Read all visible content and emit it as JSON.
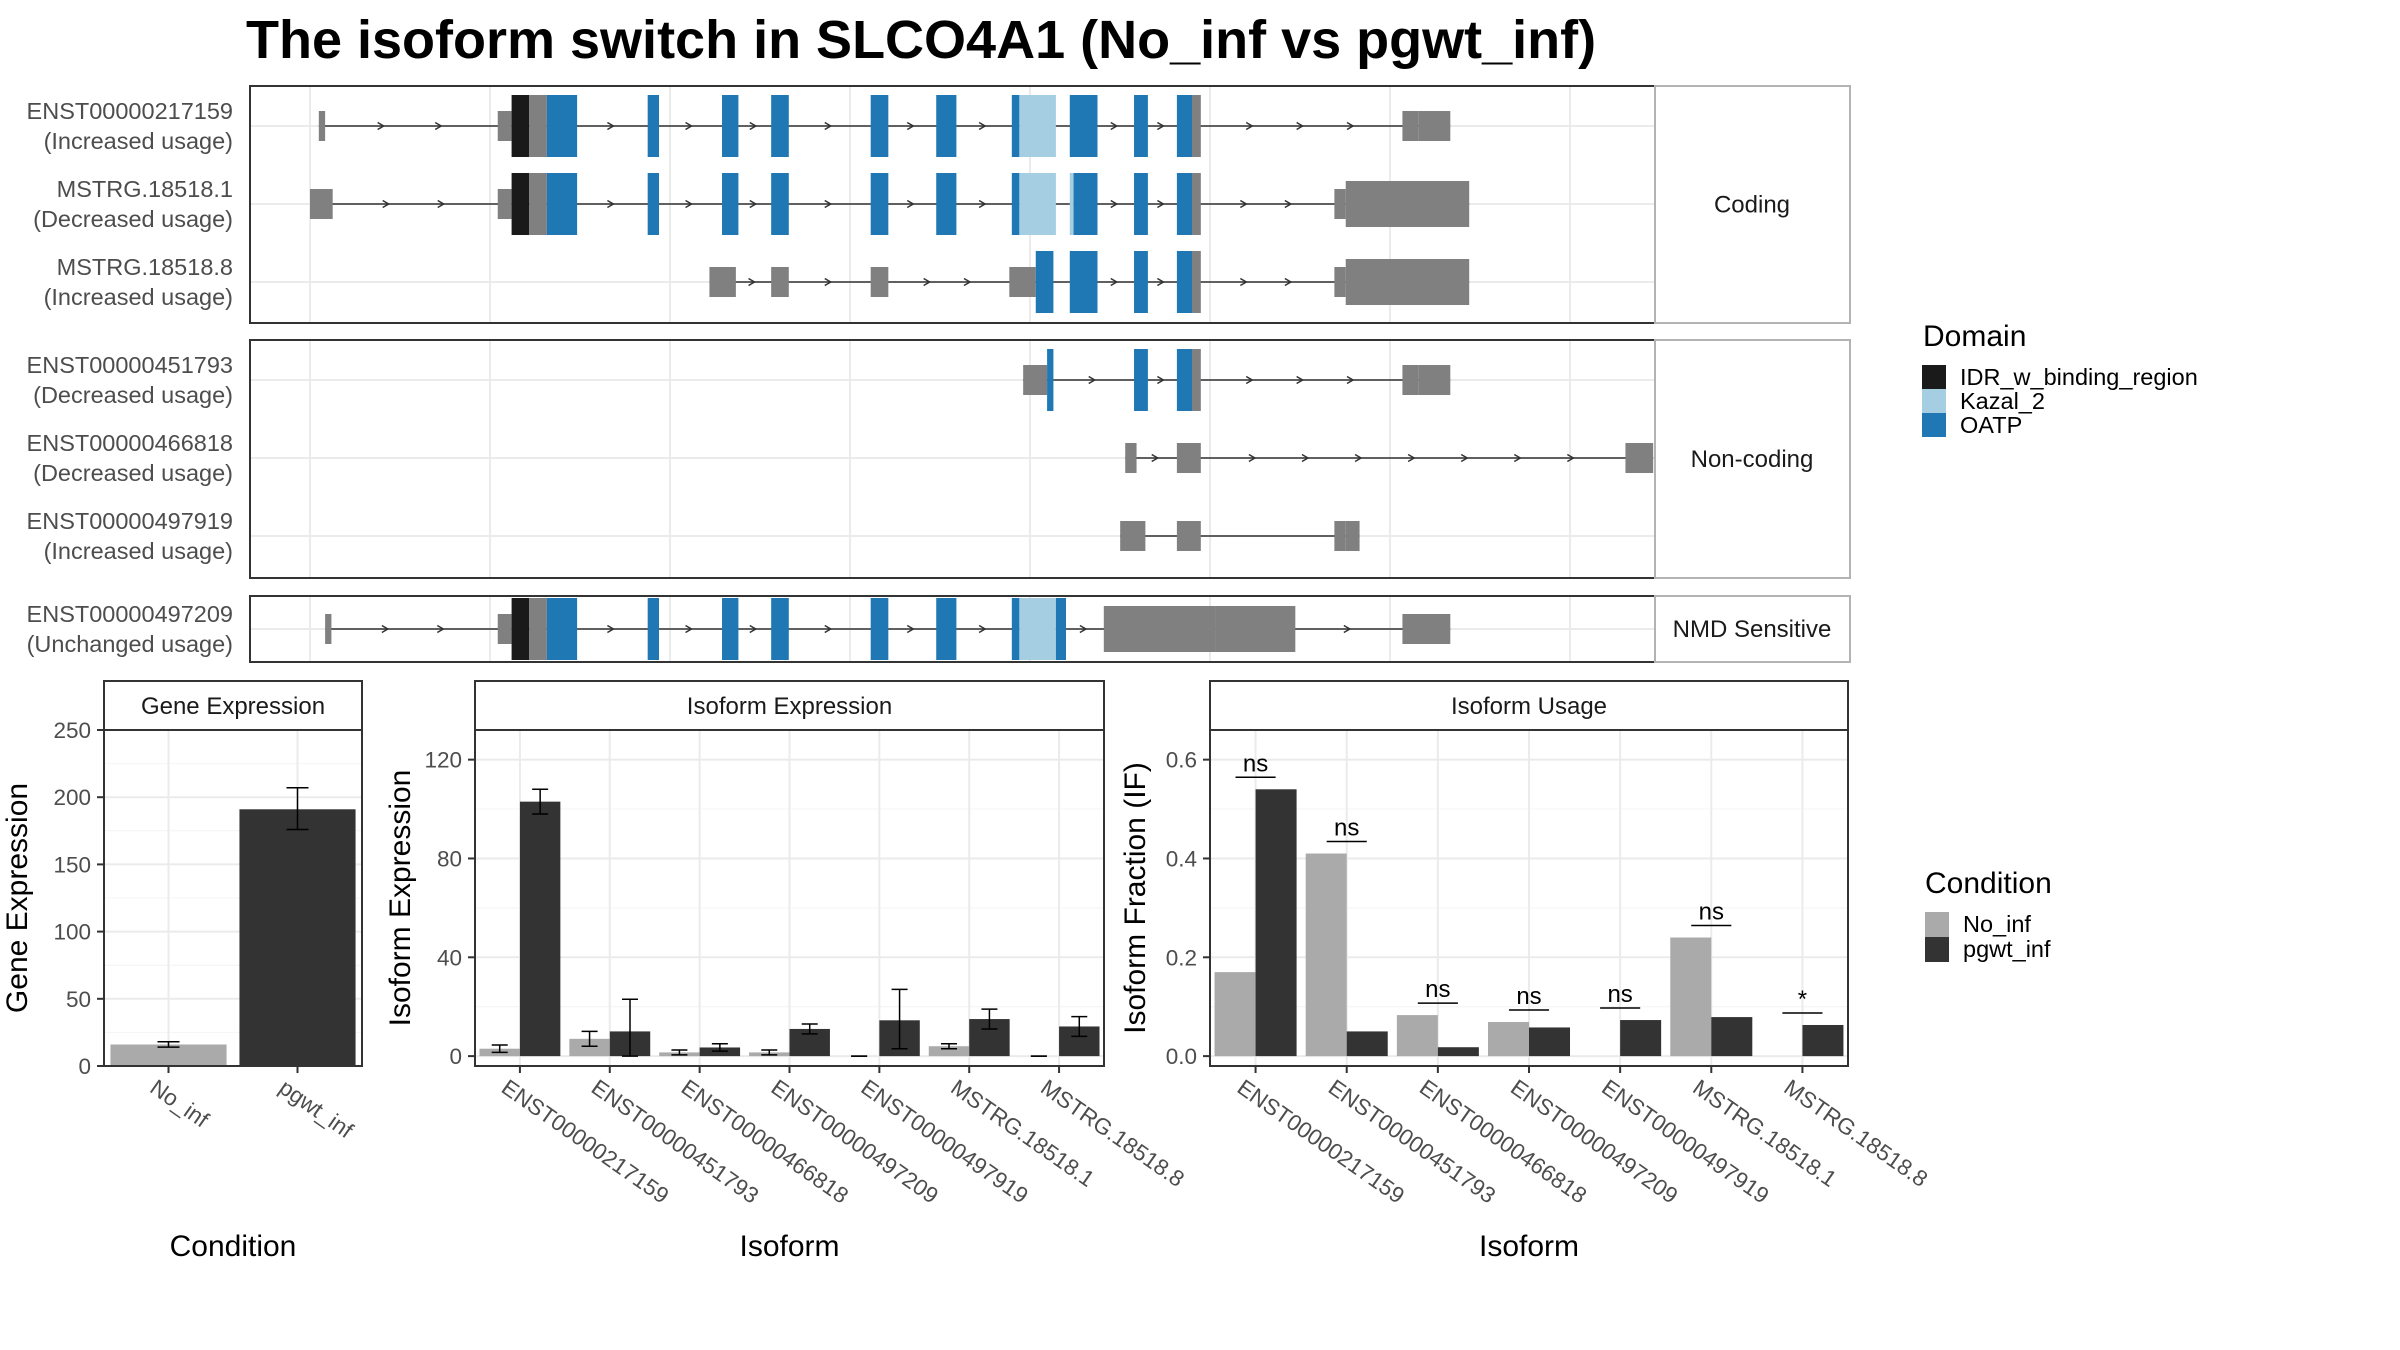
{
  "title": "The isoform switch in SLCO4A1 (No_inf vs pgwt_inf)",
  "colors": {
    "IDR_w_binding_region": "#1a1a1a",
    "Kazal_2": "#a6cee3",
    "OATP": "#1f78b4",
    "noncoding": "#808080",
    "No_inf": "#aaaaaa",
    "pgwt_inf": "#333333",
    "panel_border": "#333333",
    "grid": "#ebebeb"
  },
  "structure": {
    "genomic_range": [
      0,
      1000
    ],
    "groups": [
      {
        "label": "Coding",
        "isoforms": [
          {
            "id": "ENST00000217159",
            "usage": "(Increased usage)",
            "strand_arrows": true,
            "noncoding": [
              [
                7,
                12
              ],
              [
                149,
                160
              ],
              [
                867,
                880
              ],
              [
                880,
                905
              ]
            ],
            "domains": [
              [
                160,
                174,
                "IDR_w_binding_region"
              ],
              [
                174,
                188,
                "noncoding"
              ],
              [
                188,
                212,
                "OATP"
              ],
              [
                268,
                277,
                "OATP"
              ],
              [
                327,
                340,
                "OATP"
              ],
              [
                366,
                380,
                "OATP"
              ],
              [
                445,
                459,
                "OATP"
              ],
              [
                497,
                513,
                "OATP"
              ],
              [
                557,
                563,
                "OATP"
              ],
              [
                563,
                592,
                "Kazal_2"
              ],
              [
                603,
                625,
                "OATP"
              ],
              [
                654,
                665,
                "OATP"
              ],
              [
                688,
                700,
                "OATP"
              ],
              [
                700,
                707,
                "noncoding"
              ]
            ]
          },
          {
            "id": "MSTRG.18518.1",
            "usage": "(Decreased usage)",
            "strand_arrows": true,
            "noncoding": [
              [
                0,
                18
              ],
              [
                149,
                160
              ],
              [
                813,
                822
              ],
              [
                822,
                920
              ]
            ],
            "domains": [
              [
                160,
                174,
                "IDR_w_binding_region"
              ],
              [
                174,
                188,
                "noncoding"
              ],
              [
                188,
                212,
                "OATP"
              ],
              [
                268,
                277,
                "OATP"
              ],
              [
                327,
                340,
                "OATP"
              ],
              [
                366,
                380,
                "OATP"
              ],
              [
                445,
                459,
                "OATP"
              ],
              [
                497,
                513,
                "OATP"
              ],
              [
                557,
                563,
                "OATP"
              ],
              [
                563,
                592,
                "Kazal_2"
              ],
              [
                603,
                606,
                "Kazal_2"
              ],
              [
                606,
                625,
                "OATP"
              ],
              [
                654,
                665,
                "OATP"
              ],
              [
                688,
                700,
                "OATP"
              ],
              [
                700,
                707,
                "noncoding"
              ]
            ]
          },
          {
            "id": "MSTRG.18518.8",
            "usage": "(Increased usage)",
            "strand_arrows": true,
            "noncoding": [
              [
                317,
                338
              ],
              [
                366,
                380
              ],
              [
                445,
                459
              ],
              [
                555,
                576
              ],
              [
                813,
                822
              ],
              [
                822,
                920
              ]
            ],
            "domains": [
              [
                576,
                590,
                "OATP"
              ],
              [
                603,
                625,
                "OATP"
              ],
              [
                654,
                665,
                "OATP"
              ],
              [
                688,
                700,
                "OATP"
              ],
              [
                700,
                707,
                "noncoding"
              ]
            ]
          }
        ]
      },
      {
        "label": "Non-coding",
        "isoforms": [
          {
            "id": "ENST00000451793",
            "usage": "(Decreased usage)",
            "strand_arrows": true,
            "noncoding": [
              [
                566,
                585
              ],
              [
                867,
                880
              ],
              [
                880,
                905
              ]
            ],
            "domains": [
              [
                585,
                590,
                "OATP"
              ],
              [
                654,
                665,
                "OATP"
              ],
              [
                688,
                700,
                "OATP"
              ],
              [
                700,
                707,
                "noncoding"
              ]
            ]
          },
          {
            "id": "ENST00000466818",
            "usage": "(Decreased usage)",
            "strand_arrows": true,
            "noncoding": [
              [
                647,
                656
              ],
              [
                688,
                707
              ],
              [
                1044,
                1066
              ]
            ],
            "domains": []
          },
          {
            "id": "ENST00000497919",
            "usage": "(Increased usage)",
            "strand_arrows": false,
            "noncoding": [
              [
                643,
                663
              ],
              [
                688,
                700
              ],
              [
                700,
                707
              ],
              [
                813,
                822
              ],
              [
                822,
                833
              ]
            ],
            "domains": []
          }
        ]
      },
      {
        "label": "NMD Sensitive",
        "isoforms": [
          {
            "id": "ENST00000497209",
            "usage": "(Unchanged usage)",
            "strand_arrows": true,
            "noncoding": [
              [
                12,
                17
              ],
              [
                149,
                160
              ],
              [
                630,
                719
              ],
              [
                719,
                782
              ],
              [
                867,
                905
              ]
            ],
            "domains": [
              [
                160,
                174,
                "IDR_w_binding_region"
              ],
              [
                174,
                188,
                "noncoding"
              ],
              [
                188,
                212,
                "OATP"
              ],
              [
                268,
                277,
                "OATP"
              ],
              [
                327,
                340,
                "OATP"
              ],
              [
                366,
                380,
                "OATP"
              ],
              [
                445,
                459,
                "OATP"
              ],
              [
                497,
                513,
                "OATP"
              ],
              [
                557,
                563,
                "OATP"
              ],
              [
                563,
                592,
                "Kazal_2"
              ],
              [
                592,
                600,
                "OATP"
              ]
            ]
          }
        ]
      }
    ]
  },
  "domain_legend": {
    "title": "Domain",
    "items": [
      "IDR_w_binding_region",
      "Kazal_2",
      "OATP"
    ]
  },
  "condition_legend": {
    "title": "Condition",
    "items": [
      "No_inf",
      "pgwt_inf"
    ]
  },
  "chart_data": [
    {
      "type": "bar",
      "title": "Gene Expression",
      "xlabel": "Condition",
      "ylabel": "Gene Expression",
      "categories": [
        "No_inf",
        "pgwt_inf"
      ],
      "values": [
        16,
        191
      ],
      "errors": [
        [
          14,
          18
        ],
        [
          176,
          207
        ]
      ],
      "ylim": [
        0,
        250
      ],
      "yticks": [
        0,
        50,
        100,
        150,
        200,
        250
      ]
    },
    {
      "type": "bar",
      "title": "Isoform Expression",
      "xlabel": "Isoform",
      "ylabel": "Isoform Expression",
      "categories": [
        "ENST00000217159",
        "ENST00000451793",
        "ENST00000466818",
        "ENST00000497209",
        "ENST00000497919",
        "MSTRG.18518.1",
        "MSTRG.18518.8"
      ],
      "series": [
        {
          "name": "No_inf",
          "values": [
            3,
            7,
            1.5,
            1.5,
            0,
            4,
            0
          ],
          "errors": [
            [
              1.5,
              4.5
            ],
            [
              4,
              10
            ],
            [
              0.5,
              2.5
            ],
            [
              0.5,
              2.5
            ],
            [
              0,
              0
            ],
            [
              3,
              5
            ],
            [
              0,
              0
            ]
          ]
        },
        {
          "name": "pgwt_inf",
          "values": [
            103,
            10,
            3.5,
            11,
            14.5,
            15,
            12
          ],
          "errors": [
            [
              98,
              108
            ],
            [
              0,
              23
            ],
            [
              2,
              5
            ],
            [
              9,
              13
            ],
            [
              3,
              27
            ],
            [
              11,
              19
            ],
            [
              8,
              16
            ]
          ]
        }
      ],
      "ylim": [
        -4,
        132
      ],
      "yticks": [
        0,
        40,
        80,
        120
      ]
    },
    {
      "type": "bar",
      "title": "Isoform Usage",
      "xlabel": "Isoform",
      "ylabel": "Isoform Fraction (IF)",
      "categories": [
        "ENST00000217159",
        "ENST00000451793",
        "ENST00000466818",
        "ENST00000497209",
        "ENST00000497919",
        "MSTRG.18518.1",
        "MSTRG.18518.8"
      ],
      "series": [
        {
          "name": "No_inf",
          "values": [
            0.17,
            0.41,
            0.083,
            0.069,
            0,
            0.24,
            0
          ]
        },
        {
          "name": "pgwt_inf",
          "values": [
            0.54,
            0.05,
            0.018,
            0.058,
            0.073,
            0.079,
            0.063
          ]
        }
      ],
      "significance": [
        "ns",
        "ns",
        "ns",
        "ns",
        "ns",
        "ns",
        "*"
      ],
      "ylim": [
        -0.02,
        0.66
      ],
      "yticks": [
        0.0,
        0.2,
        0.4,
        0.6
      ]
    }
  ]
}
